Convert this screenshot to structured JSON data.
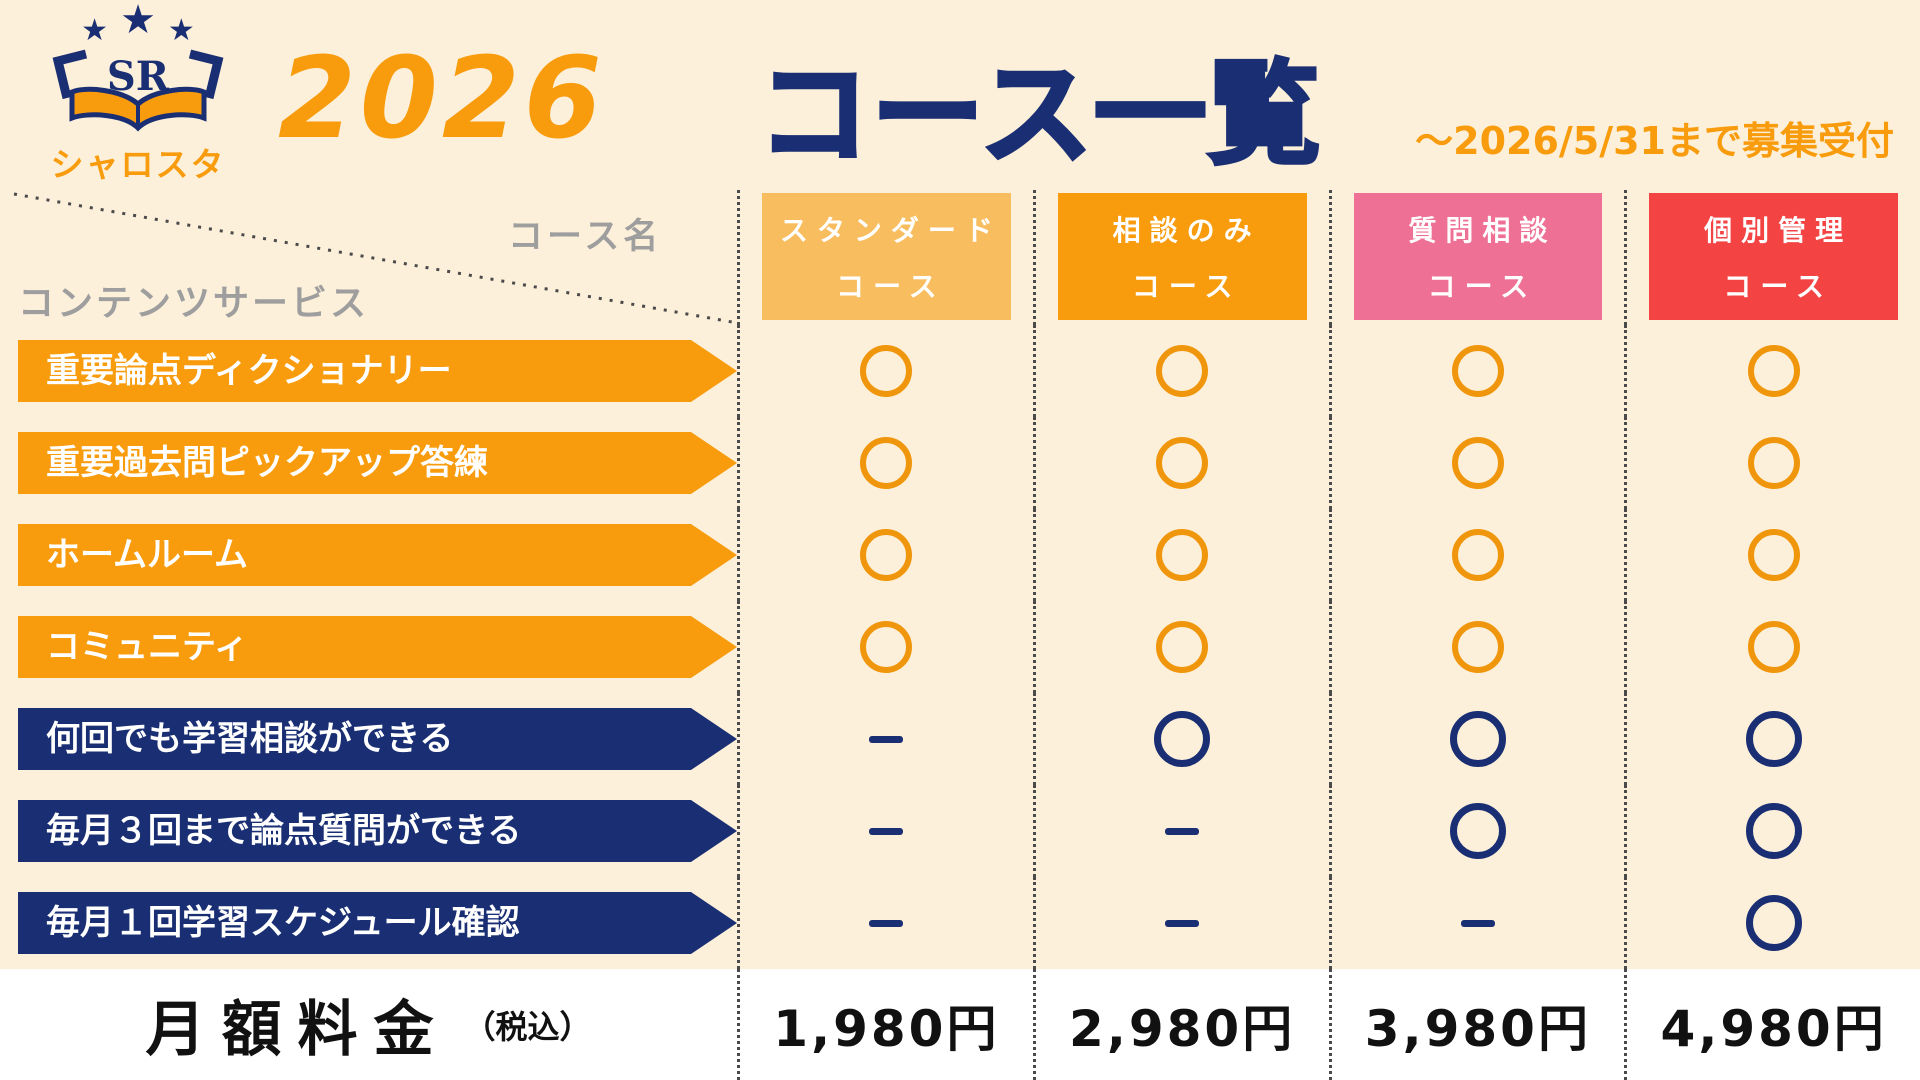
{
  "page": {
    "background": "#fdf0da"
  },
  "header": {
    "logo": {
      "sr_text": "SR",
      "brand_name": "シャロスタ",
      "star_glyph": "★"
    },
    "year": "2026",
    "title": "コース一覧",
    "deadline_note": "～2026/5/31まで募集受付"
  },
  "table": {
    "corner": {
      "course_name_label": "コース名",
      "services_label": "コンテンツサービス"
    },
    "courses": [
      {
        "name_line1": "スタンダード",
        "name_line2": "コース",
        "color": "#f8bd5f"
      },
      {
        "name_line1": "相談のみ",
        "name_line2": "コース",
        "color": "#f89c0e"
      },
      {
        "name_line1": "質問相談",
        "name_line2": "コース",
        "color": "#ee7195"
      },
      {
        "name_line1": "個別管理",
        "name_line2": "コース",
        "color": "#f34343"
      }
    ],
    "features": [
      {
        "label": "重要論点ディクショナリー",
        "type": "orange",
        "values": [
          "circle",
          "circle",
          "circle",
          "circle"
        ]
      },
      {
        "label": "重要過去問ピックアップ答練",
        "type": "orange",
        "values": [
          "circle",
          "circle",
          "circle",
          "circle"
        ]
      },
      {
        "label": "ホームルーム",
        "type": "orange",
        "values": [
          "circle",
          "circle",
          "circle",
          "circle"
        ]
      },
      {
        "label": "コミュニティ",
        "type": "orange",
        "values": [
          "circle",
          "circle",
          "circle",
          "circle"
        ]
      },
      {
        "label": "何回でも学習相談ができる",
        "type": "navy",
        "values": [
          "dash",
          "circle",
          "circle",
          "circle"
        ]
      },
      {
        "label": "毎月３回まで論点質問ができる",
        "type": "navy",
        "values": [
          "dash",
          "dash",
          "circle",
          "circle"
        ]
      },
      {
        "label": "毎月１回学習スケジュール確認",
        "type": "navy",
        "values": [
          "dash",
          "dash",
          "dash",
          "circle"
        ]
      }
    ],
    "price_row": {
      "label": "月額料金",
      "label_suffix": "（税込）",
      "prices": [
        "1,980円",
        "2,980円",
        "3,980円",
        "4,980円"
      ]
    }
  },
  "colors": {
    "orange": "#f89c0e",
    "navy": "#1a2f73",
    "pink": "#ee7195",
    "red": "#f34343",
    "gray_label": "#9e9e9e",
    "background": "#fdf0da"
  },
  "chart_data": {
    "type": "table",
    "title": "コース一覧",
    "subtitle": "～2026/5/31まで募集受付",
    "columns": [
      "コンテンツサービス",
      "スタンダードコース",
      "相談のみコース",
      "質問相談コース",
      "個別管理コース"
    ],
    "rows": [
      [
        "重要論点ディクショナリー",
        "○",
        "○",
        "○",
        "○"
      ],
      [
        "重要過去問ピックアップ答練",
        "○",
        "○",
        "○",
        "○"
      ],
      [
        "ホームルーム",
        "○",
        "○",
        "○",
        "○"
      ],
      [
        "コミュニティ",
        "○",
        "○",
        "○",
        "○"
      ],
      [
        "何回でも学習相談ができる",
        "−",
        "○",
        "○",
        "○"
      ],
      [
        "毎月３回まで論点質問ができる",
        "−",
        "−",
        "○",
        "○"
      ],
      [
        "毎月１回学習スケジュール確認",
        "−",
        "−",
        "−",
        "○"
      ],
      [
        "月額料金（税込）",
        "1,980円",
        "2,980円",
        "3,980円",
        "4,980円"
      ]
    ]
  }
}
